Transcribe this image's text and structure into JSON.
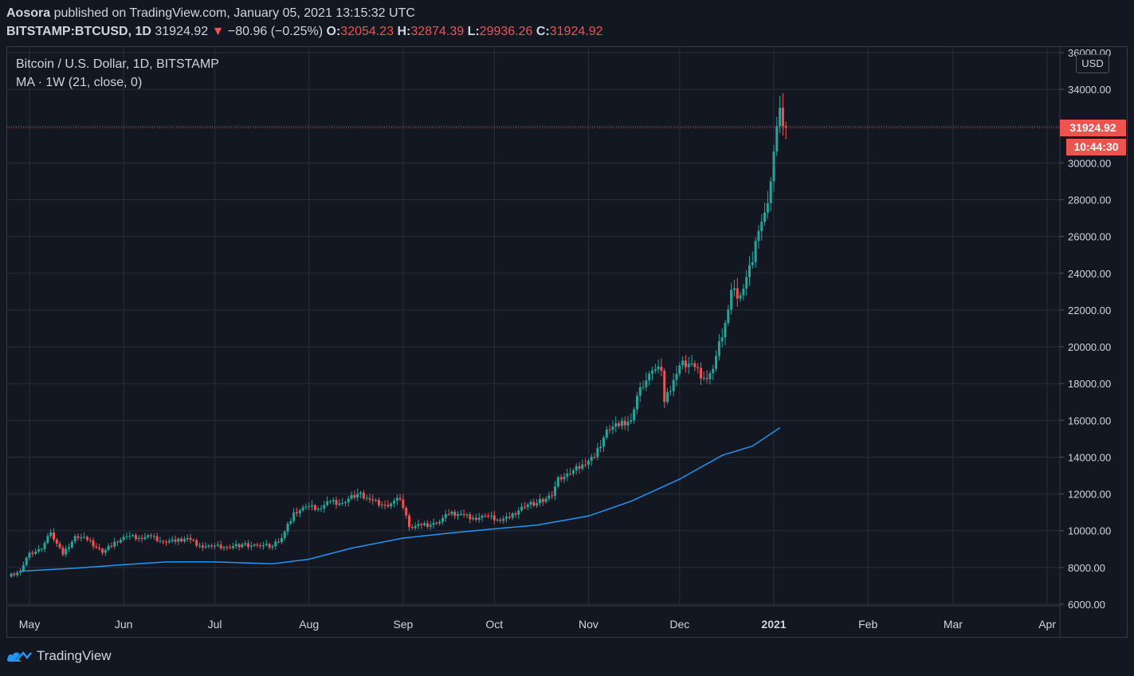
{
  "header": {
    "author": "Aosora",
    "published_text": "published on TradingView.com, January 05, 2021 13:15:32 UTC"
  },
  "ticker": {
    "symbol": "BITSTAMP:BTCUSD, 1D",
    "last": "31924.92",
    "change": "−80.96 (−0.25%)",
    "o_label": "O:",
    "open": "32054.23",
    "h_label": "H:",
    "high": "32874.39",
    "l_label": "L:",
    "low": "29936.26",
    "c_label": "C:",
    "close": "31924.92",
    "down_icon": "triangle-down-icon"
  },
  "legend": {
    "line1": "Bitcoin / U.S. Dollar, 1D, BITSTAMP",
    "line2": "MA · 1W (21, close, 0)"
  },
  "axis": {
    "currency": "USD",
    "price_label": "31924.92",
    "countdown": "10:44:30"
  },
  "branding": {
    "name": "TradingView",
    "icon": "tradingview-logo-icon"
  },
  "colors": {
    "background": "#131722",
    "grid": "#2a2e39",
    "up": "#26a69a",
    "down": "#ef5350",
    "ma": "#2196f3"
  },
  "chart_data": {
    "type": "candlestick",
    "title": "Bitcoin / U.S. Dollar, 1D, BITSTAMP",
    "ylim": [
      6000,
      36000
    ],
    "y_ticks": [
      6000,
      8000,
      10000,
      12000,
      14000,
      16000,
      18000,
      20000,
      22000,
      24000,
      26000,
      28000,
      30000,
      32000,
      34000,
      36000
    ],
    "x_ticks": [
      "May",
      "Jun",
      "Jul",
      "Aug",
      "Sep",
      "Oct",
      "Nov",
      "Dec",
      "2021",
      "Feb",
      "Mar",
      "Apr"
    ],
    "last_price": 31924.92,
    "close_series": {
      "name": "BTCUSD",
      "points": [
        [
          "2020-04-24",
          7500
        ],
        [
          "2020-04-28",
          7800
        ],
        [
          "2020-05-01",
          8800
        ],
        [
          "2020-05-05",
          9000
        ],
        [
          "2020-05-08",
          9900
        ],
        [
          "2020-05-12",
          8700
        ],
        [
          "2020-05-16",
          9700
        ],
        [
          "2020-05-20",
          9500
        ],
        [
          "2020-05-25",
          8800
        ],
        [
          "2020-05-29",
          9400
        ],
        [
          "2020-06-02",
          9700
        ],
        [
          "2020-06-06",
          9600
        ],
        [
          "2020-06-10",
          9700
        ],
        [
          "2020-06-14",
          9400
        ],
        [
          "2020-06-18",
          9400
        ],
        [
          "2020-06-22",
          9600
        ],
        [
          "2020-06-26",
          9200
        ],
        [
          "2020-06-30",
          9150
        ],
        [
          "2020-07-05",
          9100
        ],
        [
          "2020-07-10",
          9250
        ],
        [
          "2020-07-15",
          9200
        ],
        [
          "2020-07-20",
          9150
        ],
        [
          "2020-07-23",
          9600
        ],
        [
          "2020-07-27",
          11000
        ],
        [
          "2020-07-31",
          11300
        ],
        [
          "2020-08-04",
          11200
        ],
        [
          "2020-08-08",
          11600
        ],
        [
          "2020-08-12",
          11500
        ],
        [
          "2020-08-17",
          12000
        ],
        [
          "2020-08-21",
          11700
        ],
        [
          "2020-08-26",
          11400
        ],
        [
          "2020-08-31",
          11700
        ],
        [
          "2020-09-03",
          10200
        ],
        [
          "2020-09-07",
          10300
        ],
        [
          "2020-09-12",
          10400
        ],
        [
          "2020-09-16",
          10900
        ],
        [
          "2020-09-20",
          10900
        ],
        [
          "2020-09-24",
          10700
        ],
        [
          "2020-09-28",
          10800
        ],
        [
          "2020-10-02",
          10600
        ],
        [
          "2020-10-06",
          10700
        ],
        [
          "2020-10-10",
          11300
        ],
        [
          "2020-10-15",
          11500
        ],
        [
          "2020-10-20",
          11900
        ],
        [
          "2020-10-22",
          12900
        ],
        [
          "2020-10-26",
          13100
        ],
        [
          "2020-10-30",
          13600
        ],
        [
          "2020-11-03",
          14000
        ],
        [
          "2020-11-07",
          15500
        ],
        [
          "2020-11-11",
          15700
        ],
        [
          "2020-11-15",
          16000
        ],
        [
          "2020-11-18",
          17800
        ],
        [
          "2020-11-22",
          18700
        ],
        [
          "2020-11-25",
          18700
        ],
        [
          "2020-11-26",
          17000
        ],
        [
          "2020-11-29",
          18200
        ],
        [
          "2020-12-01",
          19000
        ],
        [
          "2020-12-05",
          19100
        ],
        [
          "2020-12-09",
          18300
        ],
        [
          "2020-12-12",
          18800
        ],
        [
          "2020-12-16",
          21300
        ],
        [
          "2020-12-18",
          23100
        ],
        [
          "2020-12-21",
          22800
        ],
        [
          "2020-12-25",
          24600
        ],
        [
          "2020-12-27",
          26300
        ],
        [
          "2020-12-29",
          27300
        ],
        [
          "2020-12-31",
          29000
        ],
        [
          "2021-01-02",
          32000
        ],
        [
          "2021-01-03",
          33000
        ],
        [
          "2021-01-04",
          32000
        ],
        [
          "2021-01-05",
          31924.92
        ]
      ]
    },
    "series": [
      {
        "name": "MA · 1W (21, close, 0)",
        "points": [
          [
            "2020-04-28",
            7800
          ],
          [
            "2020-05-15",
            7950
          ],
          [
            "2020-06-01",
            8150
          ],
          [
            "2020-06-15",
            8300
          ],
          [
            "2020-07-01",
            8300
          ],
          [
            "2020-07-20",
            8200
          ],
          [
            "2020-08-01",
            8450
          ],
          [
            "2020-08-15",
            9050
          ],
          [
            "2020-09-01",
            9600
          ],
          [
            "2020-09-15",
            9850
          ],
          [
            "2020-10-01",
            10100
          ],
          [
            "2020-10-15",
            10300
          ],
          [
            "2020-11-01",
            10800
          ],
          [
            "2020-11-15",
            11600
          ],
          [
            "2020-12-01",
            12800
          ],
          [
            "2020-12-15",
            14100
          ],
          [
            "2020-12-25",
            14600
          ],
          [
            "2021-01-03",
            15600
          ]
        ]
      }
    ]
  }
}
